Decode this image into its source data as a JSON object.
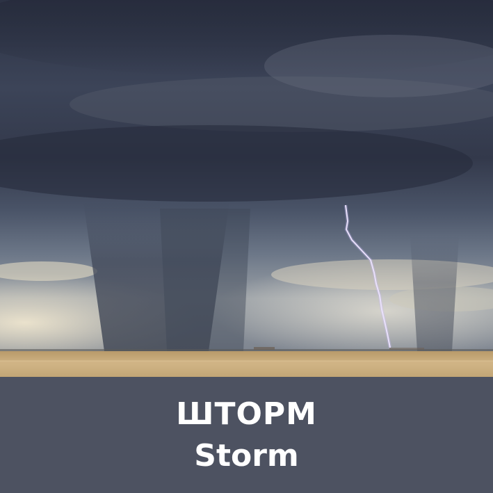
{
  "caption": {
    "title_ru": "ШТОРМ",
    "title_en": "Storm"
  },
  "colors": {
    "caption_background": "#4d5261",
    "caption_text": "#ffffff",
    "sky_dark": "#2e3445",
    "sky_mid": "#5b6677",
    "horizon_light": "#d9d4c2",
    "field": "#c9ad7c"
  }
}
